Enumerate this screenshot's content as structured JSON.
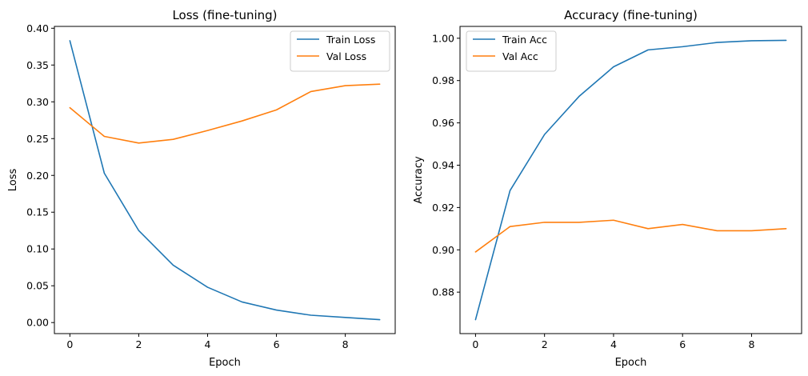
{
  "chart_data": [
    {
      "type": "line",
      "title": "Loss (fine-tuning)",
      "xlabel": "Epoch",
      "ylabel": "Loss",
      "x": [
        0,
        1,
        2,
        3,
        4,
        5,
        6,
        7,
        8,
        9
      ],
      "series": [
        {
          "name": "Train Loss",
          "color": "#1f77b4",
          "values": [
            0.383,
            0.203,
            0.125,
            0.078,
            0.048,
            0.028,
            0.017,
            0.01,
            0.007,
            0.004
          ]
        },
        {
          "name": "Val Loss",
          "color": "#ff7f0e",
          "values": [
            0.292,
            0.253,
            0.244,
            0.249,
            0.261,
            0.274,
            0.289,
            0.314,
            0.322,
            0.324
          ]
        }
      ],
      "xlim": [
        -0.45,
        9.45
      ],
      "ylim": [
        -0.015,
        0.4025
      ],
      "xticks": [
        0,
        2,
        4,
        6,
        8
      ],
      "xtick_labels": [
        "0",
        "2",
        "4",
        "6",
        "8"
      ],
      "yticks": [
        0.0,
        0.05,
        0.1,
        0.15,
        0.2,
        0.25,
        0.3,
        0.35,
        0.4
      ],
      "ytick_labels": [
        "0.00",
        "0.05",
        "0.10",
        "0.15",
        "0.20",
        "0.25",
        "0.30",
        "0.35",
        "0.40"
      ],
      "grid": false,
      "legend": "top-right"
    },
    {
      "type": "line",
      "title": "Accuracy (fine-tuning)",
      "xlabel": "Epoch",
      "ylabel": "Accuracy",
      "x": [
        0,
        1,
        2,
        3,
        4,
        5,
        6,
        7,
        8,
        9
      ],
      "series": [
        {
          "name": "Train Acc",
          "color": "#1f77b4",
          "values": [
            0.867,
            0.928,
            0.9545,
            0.9725,
            0.9865,
            0.9945,
            0.996,
            0.998,
            0.9988,
            0.999
          ]
        },
        {
          "name": "Val Acc",
          "color": "#ff7f0e",
          "values": [
            0.899,
            0.911,
            0.913,
            0.913,
            0.914,
            0.91,
            0.912,
            0.909,
            0.909,
            0.91
          ]
        }
      ],
      "xlim": [
        -0.45,
        9.45
      ],
      "ylim": [
        0.8604,
        1.0056
      ],
      "xticks": [
        0,
        2,
        4,
        6,
        8
      ],
      "xtick_labels": [
        "0",
        "2",
        "4",
        "6",
        "8"
      ],
      "yticks": [
        0.88,
        0.9,
        0.92,
        0.94,
        0.96,
        0.98,
        1.0
      ],
      "ytick_labels": [
        "0.88",
        "0.90",
        "0.92",
        "0.94",
        "0.96",
        "0.98",
        "1.00"
      ],
      "grid": false,
      "legend": "top-left"
    }
  ]
}
